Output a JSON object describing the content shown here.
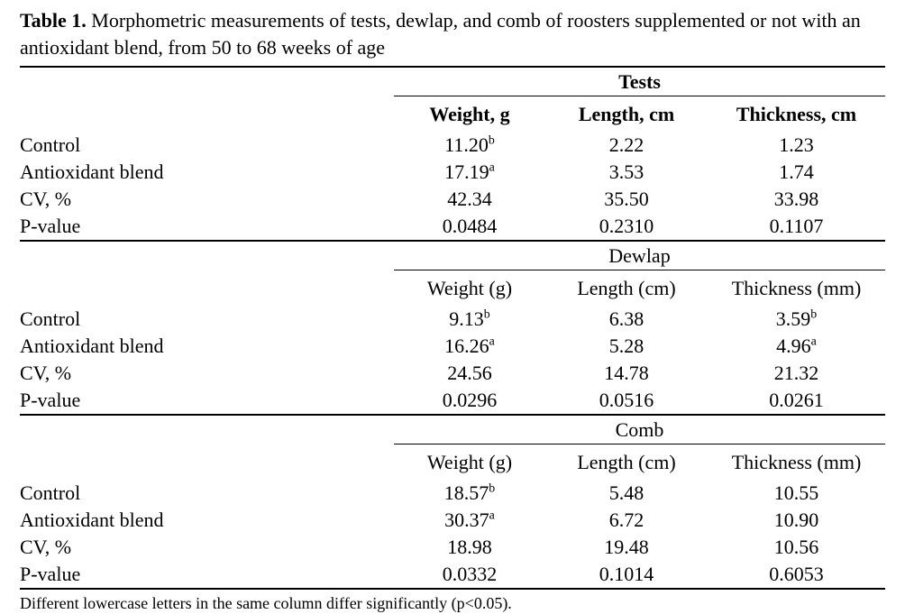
{
  "title": {
    "label": "Table 1.",
    "text": " Morphometric measurements of tests, dewlap, and comb of roosters supplemented or not with an antioxidant blend, from 50 to 68 weeks of age"
  },
  "colors": {
    "background": "#ffffff",
    "text": "#000000",
    "rules": "#000000"
  },
  "table": {
    "sections": [
      {
        "group": "Tests",
        "bold_headers": true,
        "columns": [
          "Weight, g",
          "Length, cm",
          "Thickness, cm"
        ],
        "rows": [
          {
            "label": "Control",
            "values": [
              {
                "text": "11.20",
                "sup": "b"
              },
              {
                "text": "2.22"
              },
              {
                "text": "1.23"
              }
            ]
          },
          {
            "label": "Antioxidant blend",
            "values": [
              {
                "text": "17.19",
                "sup": "a"
              },
              {
                "text": "3.53"
              },
              {
                "text": "1.74"
              }
            ]
          },
          {
            "label": "CV, %",
            "values": [
              {
                "text": "42.34"
              },
              {
                "text": "35.50"
              },
              {
                "text": "33.98"
              }
            ]
          },
          {
            "label": "P-value",
            "values": [
              {
                "text": "0.0484"
              },
              {
                "text": "0.2310"
              },
              {
                "text": "0.1107"
              }
            ]
          }
        ]
      },
      {
        "group": "Dewlap",
        "bold_headers": false,
        "columns": [
          "Weight (g)",
          "Length (cm)",
          "Thickness (mm)"
        ],
        "rows": [
          {
            "label": "Control",
            "values": [
              {
                "text": "9.13",
                "sup": "b"
              },
              {
                "text": "6.38"
              },
              {
                "text": "3.59",
                "sup": "b"
              }
            ]
          },
          {
            "label": "Antioxidant blend",
            "values": [
              {
                "text": "16.26",
                "sup": "a"
              },
              {
                "text": "5.28"
              },
              {
                "text": "4.96",
                "sup": "a"
              }
            ]
          },
          {
            "label": "CV, %",
            "values": [
              {
                "text": "24.56"
              },
              {
                "text": "14.78"
              },
              {
                "text": "21.32"
              }
            ]
          },
          {
            "label": "P-value",
            "values": [
              {
                "text": "0.0296"
              },
              {
                "text": "0.0516"
              },
              {
                "text": "0.0261"
              }
            ]
          }
        ]
      },
      {
        "group": "Comb",
        "bold_headers": false,
        "columns": [
          "Weight (g)",
          "Length (cm)",
          "Thickness (mm)"
        ],
        "rows": [
          {
            "label": "Control",
            "values": [
              {
                "text": "18.57",
                "sup": "b"
              },
              {
                "text": "5.48"
              },
              {
                "text": "10.55"
              }
            ]
          },
          {
            "label": "Antioxidant blend",
            "values": [
              {
                "text": "30.37",
                "sup": "a"
              },
              {
                "text": "6.72"
              },
              {
                "text": "10.90"
              }
            ]
          },
          {
            "label": "CV, %",
            "values": [
              {
                "text": "18.98"
              },
              {
                "text": "19.48"
              },
              {
                "text": "10.56"
              }
            ]
          },
          {
            "label": "P-value",
            "values": [
              {
                "text": "0.0332"
              },
              {
                "text": "0.1014"
              },
              {
                "text": "0.6053"
              }
            ]
          }
        ]
      }
    ]
  },
  "footnote": "Different lowercase letters in the same column differ significantly (p<0.05)."
}
